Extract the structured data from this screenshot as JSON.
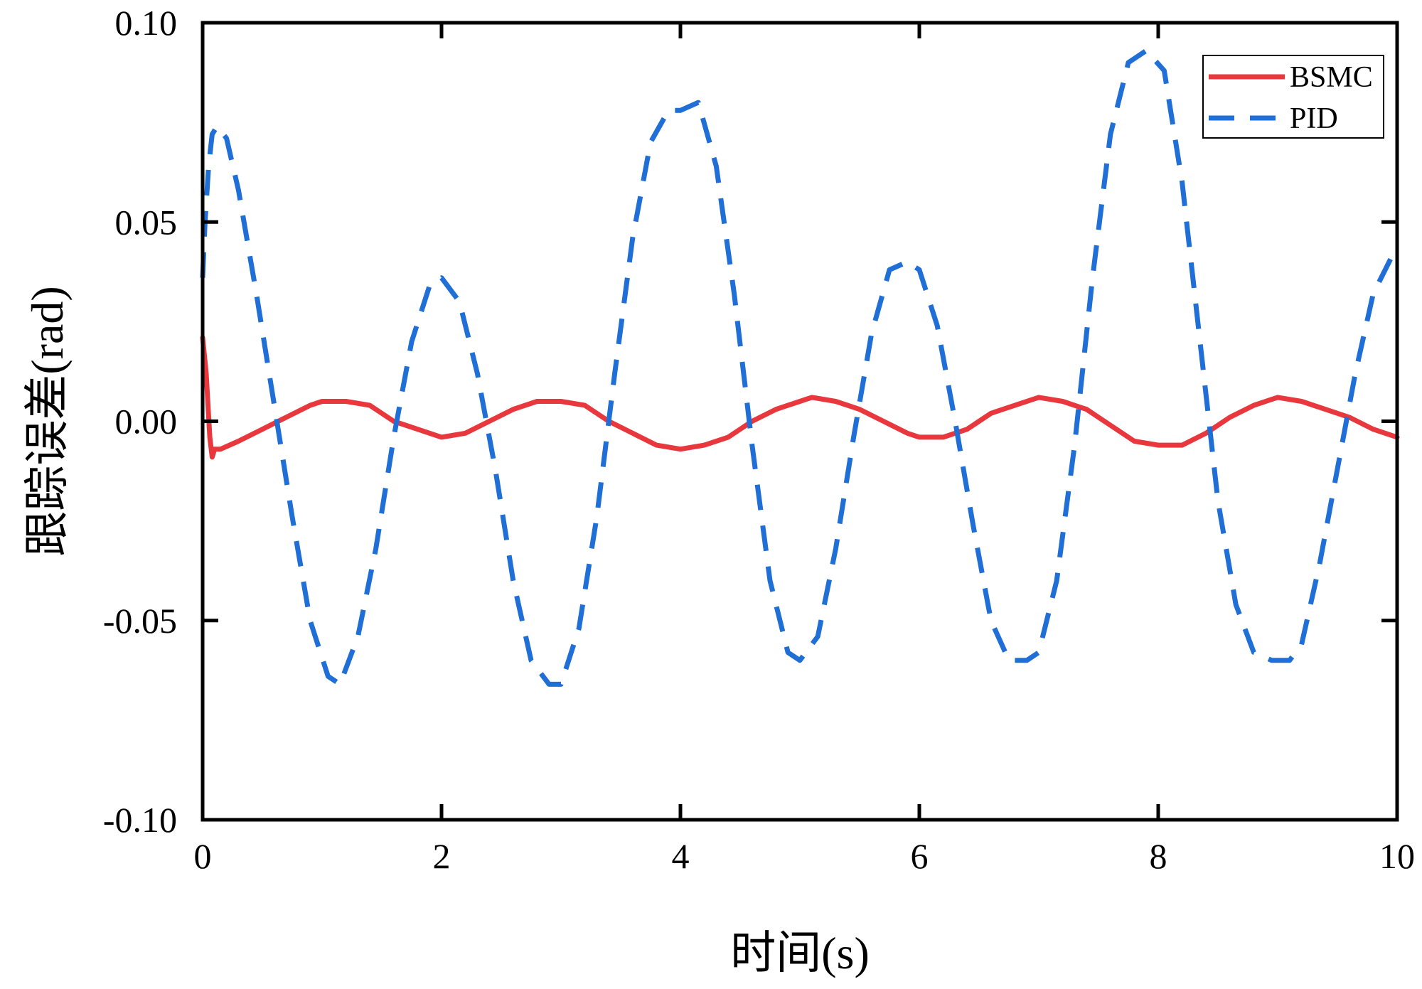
{
  "chart_data": {
    "type": "line",
    "xlabel": "时间(s)",
    "ylabel": "跟踪误差(rad)",
    "xlim": [
      0,
      10
    ],
    "ylim": [
      -0.1,
      0.1
    ],
    "xticks": [
      0,
      2,
      4,
      6,
      8,
      10
    ],
    "yticks": [
      -0.1,
      -0.05,
      0,
      0.05,
      0.1
    ],
    "xtick_labels": [
      "0",
      "2",
      "4",
      "6",
      "8",
      "10"
    ],
    "ytick_labels": [
      "-0.10",
      "-0.05",
      "0.00",
      "0.05",
      "0.10"
    ],
    "grid": false,
    "legend_position": "top-right",
    "series": [
      {
        "name": "BSMC",
        "color": "#e8383d",
        "style": "solid",
        "x": [
          0,
          0.03,
          0.06,
          0.08,
          0.1,
          0.15,
          0.3,
          0.5,
          0.7,
          0.9,
          1.0,
          1.2,
          1.4,
          1.6,
          1.8,
          2.0,
          2.2,
          2.4,
          2.6,
          2.8,
          3.0,
          3.2,
          3.4,
          3.6,
          3.8,
          4.0,
          4.2,
          4.4,
          4.6,
          4.8,
          5.0,
          5.1,
          5.3,
          5.5,
          5.7,
          5.9,
          6.0,
          6.2,
          6.4,
          6.6,
          6.8,
          7.0,
          7.2,
          7.4,
          7.6,
          7.8,
          8.0,
          8.2,
          8.4,
          8.6,
          8.8,
          9.0,
          9.2,
          9.4,
          9.6,
          9.8,
          10.0
        ],
        "y": [
          0.021,
          0.012,
          -0.004,
          -0.009,
          -0.007,
          -0.007,
          -0.005,
          -0.002,
          0.001,
          0.004,
          0.005,
          0.005,
          0.004,
          0.0,
          -0.002,
          -0.004,
          -0.003,
          0.0,
          0.003,
          0.005,
          0.005,
          0.004,
          0.0,
          -0.003,
          -0.006,
          -0.007,
          -0.006,
          -0.004,
          0.0,
          0.003,
          0.005,
          0.006,
          0.005,
          0.003,
          0.0,
          -0.003,
          -0.004,
          -0.004,
          -0.002,
          0.002,
          0.004,
          0.006,
          0.005,
          0.003,
          -0.001,
          -0.005,
          -0.006,
          -0.006,
          -0.003,
          0.001,
          0.004,
          0.006,
          0.005,
          0.003,
          0.001,
          -0.002,
          -0.004
        ]
      },
      {
        "name": "PID",
        "color": "#1f6fd6",
        "style": "dashed",
        "x": [
          0,
          0.02,
          0.05,
          0.08,
          0.12,
          0.2,
          0.3,
          0.45,
          0.6,
          0.75,
          0.9,
          1.05,
          1.15,
          1.3,
          1.45,
          1.6,
          1.75,
          1.9,
          2.0,
          2.15,
          2.3,
          2.45,
          2.6,
          2.75,
          2.9,
          3.0,
          3.15,
          3.3,
          3.45,
          3.6,
          3.75,
          3.9,
          4.0,
          4.15,
          4.3,
          4.45,
          4.6,
          4.75,
          4.9,
          5.0,
          5.15,
          5.3,
          5.45,
          5.6,
          5.75,
          5.9,
          6.0,
          6.15,
          6.3,
          6.45,
          6.6,
          6.75,
          6.9,
          7.0,
          7.15,
          7.3,
          7.45,
          7.6,
          7.75,
          7.9,
          8.05,
          8.2,
          8.35,
          8.5,
          8.65,
          8.8,
          8.95,
          9.1,
          9.2,
          9.35,
          9.5,
          9.65,
          9.8,
          9.95,
          10.0
        ],
        "y": [
          0.036,
          0.05,
          0.064,
          0.072,
          0.074,
          0.071,
          0.058,
          0.032,
          0.004,
          -0.024,
          -0.05,
          -0.064,
          -0.066,
          -0.054,
          -0.032,
          -0.004,
          0.02,
          0.034,
          0.036,
          0.03,
          0.012,
          -0.012,
          -0.04,
          -0.06,
          -0.066,
          -0.066,
          -0.052,
          -0.024,
          0.012,
          0.046,
          0.07,
          0.078,
          0.078,
          0.08,
          0.064,
          0.032,
          -0.006,
          -0.04,
          -0.058,
          -0.06,
          -0.054,
          -0.032,
          -0.004,
          0.022,
          0.038,
          0.04,
          0.038,
          0.024,
          0.0,
          -0.026,
          -0.05,
          -0.06,
          -0.06,
          -0.058,
          -0.04,
          -0.006,
          0.036,
          0.072,
          0.09,
          0.093,
          0.088,
          0.06,
          0.02,
          -0.02,
          -0.046,
          -0.058,
          -0.06,
          -0.06,
          -0.056,
          -0.036,
          -0.012,
          0.012,
          0.032,
          0.041,
          0.04
        ]
      }
    ]
  }
}
